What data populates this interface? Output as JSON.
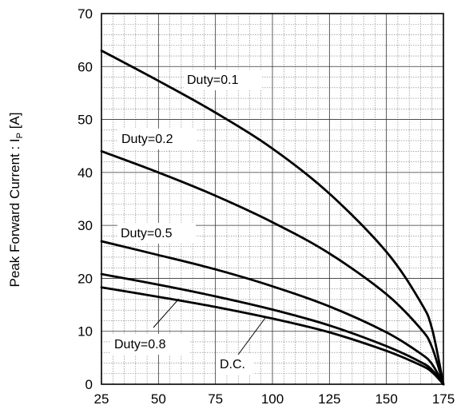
{
  "chart_data": {
    "type": "line",
    "title": "",
    "xlabel": "",
    "ylabel": "Peak Forward Current : I",
    "ylabel_subscript": "P",
    "ylabel_unit": " [A]",
    "xlim": [
      25,
      175
    ],
    "ylim": [
      0,
      70
    ],
    "x_ticks": [
      25,
      50,
      75,
      100,
      125,
      150,
      175
    ],
    "y_ticks": [
      0,
      10,
      20,
      30,
      40,
      50,
      60,
      70
    ],
    "x_minor_step": 5,
    "y_minor_step": 2,
    "grid": true,
    "line_color": "#000000",
    "x": [
      25,
      50,
      75,
      100,
      125,
      150,
      165,
      170,
      175
    ],
    "series": [
      {
        "name": "Duty=0.1",
        "values": [
          63,
          57.3,
          51.3,
          44.5,
          36.0,
          25.0,
          15.5,
          10.5,
          0
        ]
      },
      {
        "name": "Duty=0.2",
        "values": [
          44,
          40.0,
          35.6,
          30.6,
          24.7,
          17.0,
          10.5,
          7.0,
          0
        ]
      },
      {
        "name": "Duty=0.5",
        "values": [
          27,
          24.4,
          21.7,
          18.5,
          14.7,
          9.8,
          5.8,
          3.8,
          0
        ]
      },
      {
        "name": "Duty=0.8",
        "values": [
          20.8,
          18.8,
          16.6,
          14.1,
          11.1,
          7.2,
          4.2,
          2.7,
          0
        ]
      },
      {
        "name": "D.C.",
        "values": [
          18.3,
          16.5,
          14.6,
          12.4,
          9.8,
          6.3,
          3.6,
          2.3,
          0
        ]
      }
    ]
  }
}
